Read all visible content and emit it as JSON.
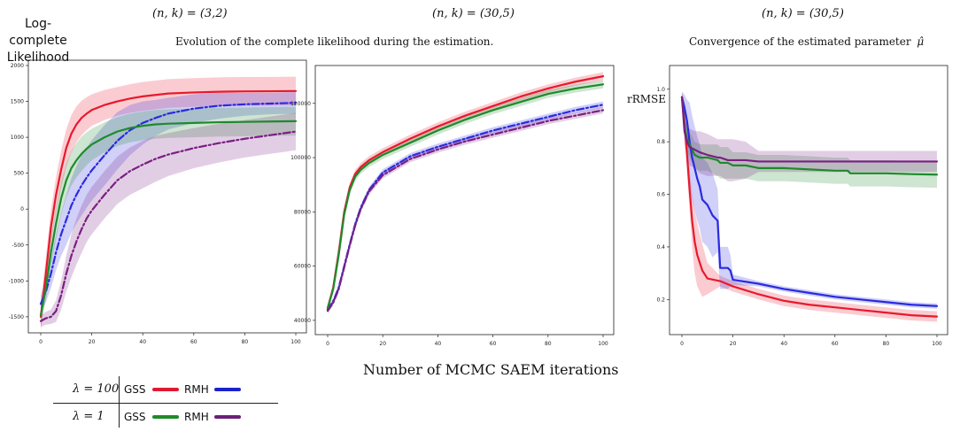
{
  "header": {
    "ylabel_left": "Log-complete\nLikelihood",
    "title1": "(n, k) = (3,2)",
    "title2": "(n, k) = (30,5)",
    "title3": "(n, k) = (30,5)",
    "subtitle_left": "Evolution of the complete likelihood during the estimation.",
    "subtitle_right": "Convergence of the estimated parameter",
    "subtitle_right_sym": "μ̂",
    "ylabel_right": "rRMSE",
    "xlabel": "Number of MCMC SAEM iterations"
  },
  "legend": {
    "rows": [
      {
        "lambda": "λ = 100",
        "gss": "GSS",
        "rmh": "RMH",
        "gss_color": "#dd1a33",
        "rmh_color": "#1a22cc"
      },
      {
        "lambda": "λ = 1",
        "gss": "GSS",
        "rmh": "RMH",
        "gss_color": "#1f8a2a",
        "rmh_color": "#6b1f7a"
      }
    ]
  },
  "colors": {
    "red": "#e8192c",
    "blue": "#2222dd",
    "green": "#1e8a2c",
    "purple": "#7a1f82"
  },
  "chart_data": [
    {
      "type": "line",
      "panel": "left",
      "xlim": [
        0,
        100
      ],
      "ylim": [
        -1600,
        2000
      ],
      "xticks": [
        "0",
        "20",
        "40",
        "60",
        "80",
        "100"
      ],
      "yticks": [
        "-1500",
        "-1000",
        "-500",
        "0",
        "500",
        "1000",
        "1500",
        "2000"
      ],
      "series": [
        {
          "name": "GSS λ=100",
          "color": "#e8192c",
          "dash": "solid",
          "x": [
            0,
            2,
            4,
            6,
            8,
            10,
            12,
            14,
            16,
            18,
            20,
            25,
            30,
            35,
            40,
            45,
            50,
            60,
            70,
            80,
            90,
            100
          ],
          "y": [
            -1500,
            -900,
            -250,
            200,
            550,
            850,
            1050,
            1180,
            1270,
            1330,
            1380,
            1450,
            1500,
            1540,
            1570,
            1590,
            1610,
            1625,
            1635,
            1640,
            1642,
            1645
          ],
          "band": [
            200,
            220,
            240,
            250,
            260,
            260,
            260,
            250,
            240,
            230,
            220,
            210,
            200,
            200,
            200,
            200,
            200,
            200,
            200,
            200,
            200,
            200
          ]
        },
        {
          "name": "RMH λ=100",
          "color": "#2a2ae0",
          "dash": "dashdot",
          "x": [
            0,
            2,
            4,
            6,
            8,
            10,
            12,
            14,
            16,
            18,
            20,
            25,
            30,
            35,
            40,
            45,
            50,
            60,
            70,
            80,
            90,
            100
          ],
          "y": [
            -1320,
            -1150,
            -900,
            -600,
            -350,
            -150,
            50,
            200,
            330,
            440,
            540,
            750,
            950,
            1100,
            1200,
            1270,
            1330,
            1400,
            1440,
            1460,
            1470,
            1480
          ],
          "band": [
            120,
            150,
            200,
            250,
            300,
            350,
            380,
            400,
            420,
            420,
            420,
            420,
            400,
            350,
            300,
            250,
            220,
            200,
            180,
            160,
            150,
            150
          ]
        },
        {
          "name": "GSS λ=1",
          "color": "#1e8a2c",
          "dash": "solid",
          "x": [
            0,
            2,
            4,
            6,
            8,
            10,
            12,
            14,
            16,
            18,
            20,
            25,
            30,
            35,
            40,
            45,
            50,
            60,
            70,
            80,
            90,
            100
          ],
          "y": [
            -1480,
            -1100,
            -600,
            -200,
            150,
            400,
            570,
            680,
            770,
            840,
            900,
            1000,
            1080,
            1130,
            1160,
            1180,
            1190,
            1200,
            1210,
            1215,
            1220,
            1225
          ],
          "band": [
            150,
            180,
            200,
            220,
            230,
            240,
            240,
            240,
            240,
            230,
            220,
            210,
            200,
            200,
            200,
            200,
            200,
            200,
            200,
            200,
            200,
            200
          ]
        },
        {
          "name": "RMH λ=1",
          "color": "#7a1f82",
          "dash": "dashdot",
          "x": [
            0,
            2,
            4,
            6,
            8,
            10,
            12,
            14,
            16,
            18,
            20,
            25,
            30,
            35,
            40,
            45,
            50,
            60,
            70,
            80,
            90,
            100
          ],
          "y": [
            -1560,
            -1520,
            -1500,
            -1420,
            -1200,
            -900,
            -650,
            -450,
            -280,
            -130,
            -20,
            200,
            400,
            530,
            620,
            700,
            760,
            850,
            920,
            980,
            1030,
            1080
          ],
          "band": [
            80,
            90,
            100,
            150,
            200,
            250,
            300,
            320,
            330,
            330,
            330,
            330,
            330,
            330,
            330,
            320,
            300,
            280,
            270,
            260,
            260,
            260
          ]
        }
      ]
    },
    {
      "type": "line",
      "panel": "middle",
      "xlim": [
        0,
        100
      ],
      "ylim": [
        38000,
        132000
      ],
      "xticks": [
        "0",
        "20",
        "40",
        "60",
        "80",
        "100"
      ],
      "yticks": [
        "40000",
        "60000",
        "80000",
        "100000",
        "120000"
      ],
      "series": [
        {
          "name": "GSS λ=100",
          "color": "#e8192c",
          "dash": "solid",
          "x": [
            0,
            2,
            4,
            6,
            8,
            10,
            12,
            15,
            20,
            30,
            40,
            50,
            60,
            70,
            80,
            90,
            100
          ],
          "y": [
            44500,
            52000,
            65000,
            80000,
            89000,
            94000,
            96500,
            99000,
            102000,
            107000,
            111500,
            115500,
            119000,
            122500,
            125500,
            128000,
            130000
          ],
          "band": [
            1000,
            1200,
            1500,
            1500,
            1500,
            1500,
            1500,
            1500,
            1500,
            1500,
            1500,
            1500,
            1500,
            1500,
            1500,
            1500,
            1500
          ]
        },
        {
          "name": "RMH λ=100",
          "color": "#2a2ae0",
          "dash": "dashdot",
          "x": [
            0,
            2,
            4,
            6,
            8,
            10,
            12,
            15,
            20,
            30,
            40,
            50,
            60,
            70,
            80,
            90,
            100
          ],
          "y": [
            44000,
            47000,
            52000,
            60000,
            68000,
            75500,
            81500,
            88000,
            94500,
            100500,
            104000,
            107000,
            110000,
            112500,
            115000,
            117500,
            119500
          ],
          "band": [
            1000,
            1000,
            1200,
            1200,
            1200,
            1200,
            1200,
            1200,
            1200,
            1200,
            1200,
            1200,
            1200,
            1200,
            1200,
            1200,
            1200
          ]
        },
        {
          "name": "GSS λ=1",
          "color": "#1e8a2c",
          "dash": "solid",
          "x": [
            0,
            2,
            4,
            6,
            8,
            10,
            12,
            15,
            20,
            30,
            40,
            50,
            60,
            70,
            80,
            90,
            100
          ],
          "y": [
            44500,
            51500,
            64000,
            79000,
            88000,
            93000,
            95500,
            98000,
            101000,
            105500,
            110000,
            114000,
            117500,
            120500,
            123500,
            125500,
            127000
          ],
          "band": [
            1000,
            1200,
            1500,
            1500,
            1500,
            1500,
            1500,
            1500,
            1500,
            1500,
            1500,
            1500,
            1500,
            1500,
            1500,
            1500,
            1500
          ]
        },
        {
          "name": "RMH λ=1",
          "color": "#7a1f82",
          "dash": "dashdot",
          "x": [
            0,
            2,
            4,
            6,
            8,
            10,
            12,
            15,
            20,
            30,
            40,
            50,
            60,
            70,
            80,
            90,
            100
          ],
          "y": [
            43500,
            46500,
            51500,
            59500,
            67500,
            75000,
            81000,
            87500,
            93500,
            99500,
            103000,
            106000,
            108500,
            111000,
            113500,
            115500,
            117500
          ],
          "band": [
            1000,
            1000,
            1200,
            1200,
            1200,
            1200,
            1200,
            1200,
            1200,
            1200,
            1200,
            1200,
            1200,
            1200,
            1200,
            1200,
            1200
          ]
        }
      ]
    },
    {
      "type": "line",
      "panel": "right",
      "xlim": [
        0,
        100
      ],
      "ylim": [
        0.1,
        1.07
      ],
      "xticks": [
        "0",
        "20",
        "40",
        "60",
        "80",
        "100"
      ],
      "yticks": [
        "0.2",
        "0.4",
        "0.6",
        "0.8",
        "1.0"
      ],
      "series": [
        {
          "name": "GSS λ=100",
          "color": "#e8192c",
          "dash": "solid",
          "x": [
            0,
            1,
            2,
            3,
            4,
            5,
            6,
            8,
            10,
            15,
            20,
            30,
            40,
            50,
            60,
            70,
            80,
            90,
            100
          ],
          "y": [
            0.97,
            0.88,
            0.75,
            0.62,
            0.5,
            0.42,
            0.37,
            0.31,
            0.28,
            0.27,
            0.25,
            0.22,
            0.195,
            0.18,
            0.17,
            0.16,
            0.15,
            0.14,
            0.135
          ],
          "band": [
            0.02,
            0.04,
            0.06,
            0.08,
            0.1,
            0.12,
            0.12,
            0.1,
            0.06,
            0.02,
            0.02,
            0.02,
            0.02,
            0.02,
            0.02,
            0.02,
            0.02,
            0.02,
            0.02
          ]
        },
        {
          "name": "RMH λ=100",
          "color": "#2a2ae0",
          "dash": "solid",
          "x": [
            0,
            1,
            2,
            3,
            4,
            5,
            6,
            7,
            8,
            10,
            12,
            14,
            15,
            16,
            17,
            18,
            19,
            20,
            30,
            40,
            50,
            60,
            70,
            80,
            90,
            100
          ],
          "y": [
            0.97,
            0.93,
            0.88,
            0.8,
            0.74,
            0.7,
            0.66,
            0.63,
            0.58,
            0.56,
            0.52,
            0.5,
            0.32,
            0.32,
            0.32,
            0.32,
            0.31,
            0.275,
            0.26,
            0.24,
            0.225,
            0.21,
            0.2,
            0.19,
            0.18,
            0.175
          ],
          "band": [
            0.02,
            0.05,
            0.08,
            0.15,
            0.16,
            0.16,
            0.16,
            0.16,
            0.16,
            0.16,
            0.16,
            0.12,
            0.08,
            0.08,
            0.08,
            0.08,
            0.06,
            0.02,
            0.01,
            0.01,
            0.01,
            0.01,
            0.01,
            0.01,
            0.01,
            0.01
          ]
        },
        {
          "name": "GSS λ=1",
          "color": "#1e8a2c",
          "dash": "solid",
          "x": [
            0,
            1,
            2,
            3,
            5,
            7,
            10,
            14,
            15,
            18,
            20,
            25,
            30,
            40,
            50,
            60,
            65,
            66,
            70,
            80,
            90,
            100
          ],
          "y": [
            0.97,
            0.86,
            0.81,
            0.79,
            0.75,
            0.74,
            0.74,
            0.73,
            0.72,
            0.72,
            0.71,
            0.71,
            0.7,
            0.7,
            0.695,
            0.69,
            0.69,
            0.68,
            0.68,
            0.68,
            0.677,
            0.675
          ],
          "band": [
            0.02,
            0.04,
            0.05,
            0.05,
            0.05,
            0.05,
            0.05,
            0.06,
            0.06,
            0.06,
            0.05,
            0.05,
            0.05,
            0.05,
            0.05,
            0.05,
            0.05,
            0.05,
            0.05,
            0.05,
            0.05,
            0.05
          ]
        },
        {
          "name": "RMH λ=1",
          "color": "#7a1f82",
          "dash": "solid",
          "x": [
            0,
            1,
            2,
            3,
            5,
            7,
            10,
            14,
            15,
            18,
            20,
            25,
            30,
            40,
            50,
            60,
            70,
            80,
            90,
            100
          ],
          "y": [
            0.97,
            0.84,
            0.8,
            0.78,
            0.77,
            0.76,
            0.75,
            0.74,
            0.74,
            0.73,
            0.73,
            0.73,
            0.725,
            0.725,
            0.725,
            0.725,
            0.725,
            0.725,
            0.725,
            0.725
          ],
          "band": [
            0.02,
            0.05,
            0.06,
            0.07,
            0.07,
            0.08,
            0.08,
            0.07,
            0.07,
            0.08,
            0.08,
            0.07,
            0.04,
            0.04,
            0.04,
            0.04,
            0.04,
            0.04,
            0.04,
            0.04
          ]
        }
      ]
    }
  ]
}
